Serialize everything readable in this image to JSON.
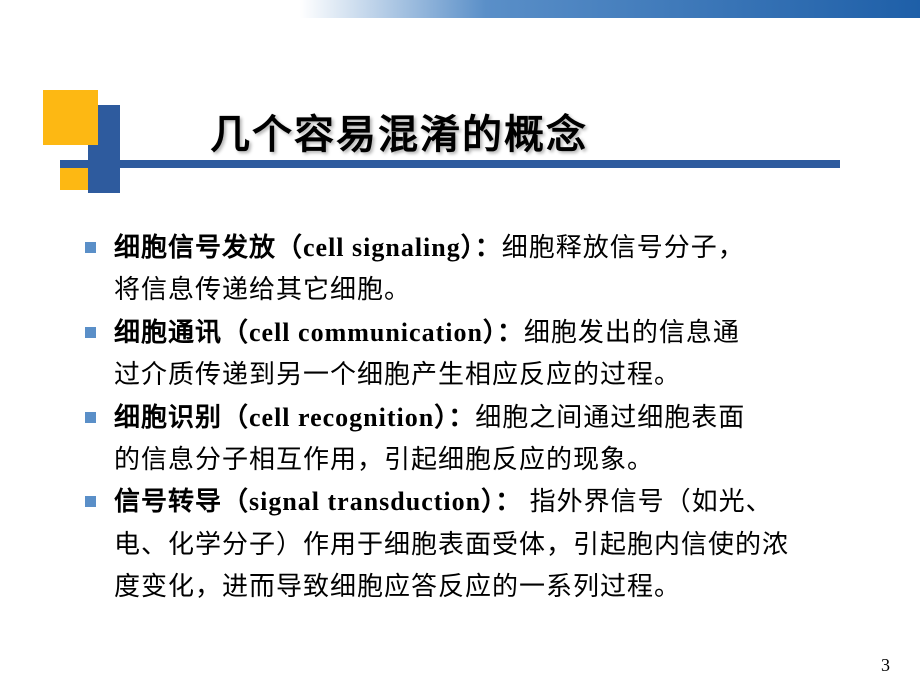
{
  "slide": {
    "title": "几个容易混淆的概念",
    "items": [
      {
        "term": "细胞信号发放（cell signaling）：",
        "line1_rest": "细胞释放信号分子，",
        "line2": "将信息传递给其它细胞。"
      },
      {
        "term": "细胞通讯（cell communication）：",
        "line1_rest": "细胞发出的信息通",
        "line2": "过介质传递到另一个细胞产生相应反应的过程。"
      },
      {
        "term": "细胞识别（cell recognition）：",
        "line1_rest": "细胞之间通过细胞表面",
        "line2": "的信息分子相互作用，引起细胞反应的现象。"
      },
      {
        "term": "信号转导（signal transduction）：",
        "line1_rest": " 指外界信号（如光、",
        "line2": "电、化学分子）作用于细胞表面受体，引起胞内信使的浓",
        "line3": "度变化，进而导致细胞应答反应的一系列过程。"
      }
    ],
    "page_number": "3",
    "colors": {
      "accent_orange": "#fdb813",
      "accent_blue": "#2e5b9e",
      "bullet_blue": "#5a8fc8",
      "gradient_start": "#5a8fc8",
      "gradient_end": "#1e5fa8",
      "background": "#ffffff",
      "text": "#000000"
    },
    "typography": {
      "title_fontsize": 40,
      "body_fontsize": 26,
      "pagenum_fontsize": 18
    }
  }
}
